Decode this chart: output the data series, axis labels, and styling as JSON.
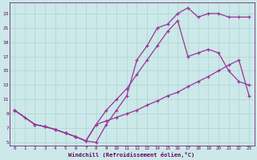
{
  "xlabel": "Windchill (Refroidissement éolien,°C)",
  "line1_x": [
    0,
    1,
    2,
    3,
    4,
    5,
    6,
    7,
    8,
    9,
    10,
    11,
    12,
    13,
    14,
    15,
    16,
    17,
    18,
    19,
    20,
    21,
    22,
    23
  ],
  "line1_y": [
    9.5,
    8.5,
    7.5,
    7.2,
    6.8,
    6.3,
    5.8,
    5.2,
    5.0,
    7.5,
    9.5,
    11.5,
    16.5,
    18.5,
    21.0,
    21.5,
    23.0,
    23.8,
    22.5,
    23.0,
    23.0,
    22.5,
    22.5,
    22.5
  ],
  "line2_x": [
    0,
    2,
    3,
    4,
    5,
    6,
    7,
    8,
    9,
    10,
    11,
    12,
    13,
    14,
    15,
    16,
    17,
    18,
    19,
    20,
    21,
    22,
    23
  ],
  "line2_y": [
    9.5,
    7.5,
    7.2,
    6.8,
    6.3,
    5.8,
    5.2,
    7.5,
    9.5,
    11.0,
    12.5,
    14.5,
    16.5,
    18.5,
    20.5,
    22.0,
    17.0,
    17.5,
    18.0,
    17.5,
    15.0,
    13.5,
    13.0
  ],
  "line3_x": [
    0,
    2,
    3,
    4,
    5,
    6,
    7,
    8,
    9,
    10,
    11,
    12,
    13,
    14,
    15,
    16,
    17,
    18,
    19,
    20,
    21,
    22,
    23
  ],
  "line3_y": [
    9.5,
    7.5,
    7.2,
    6.8,
    6.3,
    5.8,
    5.2,
    7.5,
    8.0,
    8.5,
    9.0,
    9.5,
    10.2,
    10.8,
    11.5,
    12.0,
    12.8,
    13.5,
    14.2,
    15.0,
    15.8,
    16.5,
    11.5
  ],
  "line_color": "#993399",
  "bg_color": "#cce8e8",
  "grid_color": "#aad4d4",
  "axis_color": "#660066",
  "text_color": "#660066",
  "xlim": [
    -0.5,
    23.5
  ],
  "ylim": [
    4.5,
    24.5
  ],
  "yticks": [
    5,
    7,
    9,
    11,
    13,
    15,
    17,
    19,
    21,
    23
  ],
  "xticks": [
    0,
    1,
    2,
    3,
    4,
    5,
    6,
    7,
    8,
    9,
    10,
    11,
    12,
    13,
    14,
    15,
    16,
    17,
    18,
    19,
    20,
    21,
    22,
    23
  ]
}
